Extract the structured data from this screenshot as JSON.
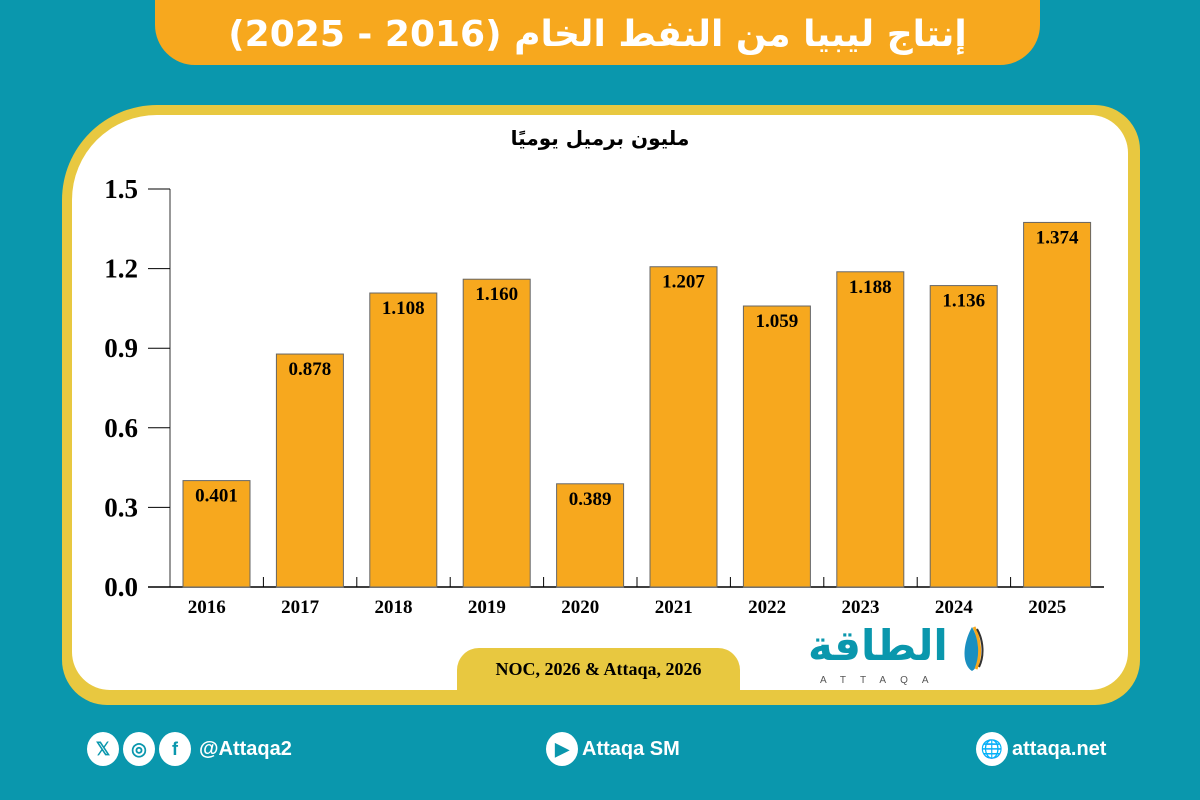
{
  "header": {
    "title": "إنتاج ليبيا من النفط الخام (2016 - 2025)"
  },
  "chart_data": {
    "type": "bar",
    "title": "إنتاج ليبيا من النفط الخام (2016 - 2025)",
    "ylabel": "مليون برميل يوميًا",
    "categories": [
      "2016",
      "2017",
      "2018",
      "2019",
      "2020",
      "2021",
      "2022",
      "2023",
      "2024",
      "2025"
    ],
    "values": [
      0.401,
      0.878,
      1.108,
      1.16,
      0.389,
      1.207,
      1.059,
      1.188,
      1.136,
      1.374
    ],
    "value_labels": [
      "0.401",
      "0.878",
      "1.108",
      "1.160",
      "0.389",
      "1.207",
      "1.059",
      "1.188",
      "1.136",
      "1.374"
    ],
    "ylim": [
      0,
      1.5
    ],
    "yticks": [
      "0.0",
      "0.3",
      "0.6",
      "0.9",
      "1.2",
      "1.5"
    ],
    "grid": false,
    "bar_color": "#f7a81e"
  },
  "source": "NOC, 2026 & Attaqa, 2026",
  "logo": {
    "arabic": "الطاقة",
    "latin": "ATTAQA"
  },
  "footer": {
    "social_handle": "@Attaqa2",
    "youtube": "Attaqa SM",
    "website": "attaqa.net",
    "icons": [
      "x-icon",
      "instagram-icon",
      "facebook-icon",
      "youtube-icon",
      "globe-icon"
    ]
  },
  "colors": {
    "background": "#0a97ad",
    "accent": "#f7a81e",
    "frame": "#e8c840"
  }
}
